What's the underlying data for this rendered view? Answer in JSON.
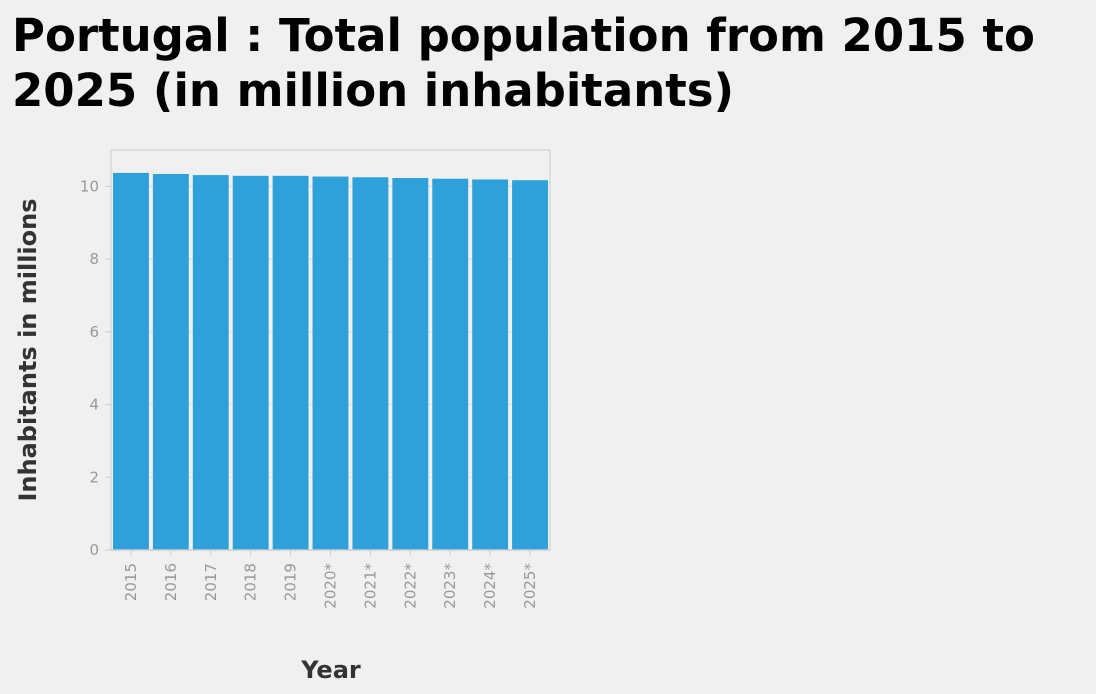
{
  "chart_data": {
    "type": "bar",
    "title": "Portugal : Total population from 2015 to 2025 (in million inhabitants)",
    "xlabel": "Year",
    "ylabel": "Inhabitants in millions",
    "categories": [
      "2015",
      "2016",
      "2017",
      "2018",
      "2019",
      "2020*",
      "2021*",
      "2022*",
      "2023*",
      "2024*",
      "2025*"
    ],
    "values": [
      10.37,
      10.34,
      10.31,
      10.29,
      10.29,
      10.27,
      10.25,
      10.23,
      10.21,
      10.19,
      10.17
    ],
    "ylim": [
      0,
      11
    ],
    "yticks": [
      0,
      2,
      4,
      6,
      8,
      10
    ],
    "grid": true,
    "legend": "none",
    "bar_color": "#2fa1da",
    "grid_color": "#dddddd",
    "axis_color": "#cccccc"
  }
}
